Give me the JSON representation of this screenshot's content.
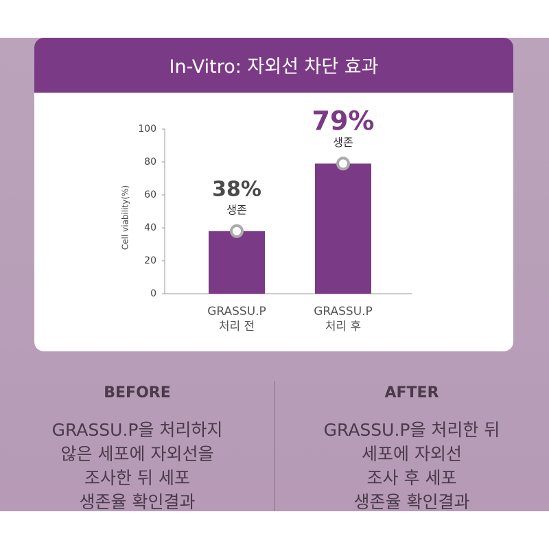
{
  "chart_data": {
    "type": "bar",
    "title": "In-Vitro: 자외선 차단 효과",
    "y_label": "Cell viability(%)",
    "categories": [
      "GRASSU.P\n처리 전",
      "GRASSU.P\n처리 후"
    ],
    "values": [
      38,
      79
    ],
    "value_labels": [
      "38%",
      "79%"
    ],
    "value_notes": [
      "생존",
      "생존"
    ],
    "color": "#7b3a85",
    "ylim": [
      0,
      100
    ],
    "yticks": [
      0,
      20,
      40,
      60,
      80,
      100
    ],
    "grid": false
  },
  "panels": [
    {
      "heading": "BEFORE",
      "lines": [
        "GRASSU.P을 처리하지",
        "않은 세포에 자외선을",
        "조사한 뒤 세포",
        "생존율 확인결과"
      ]
    },
    {
      "heading": "AFTER",
      "lines": [
        "GRASSU.P을 처리한 뒤",
        "세포에 자외선",
        "조사 후 세포",
        "생존율 확인결과"
      ]
    }
  ]
}
